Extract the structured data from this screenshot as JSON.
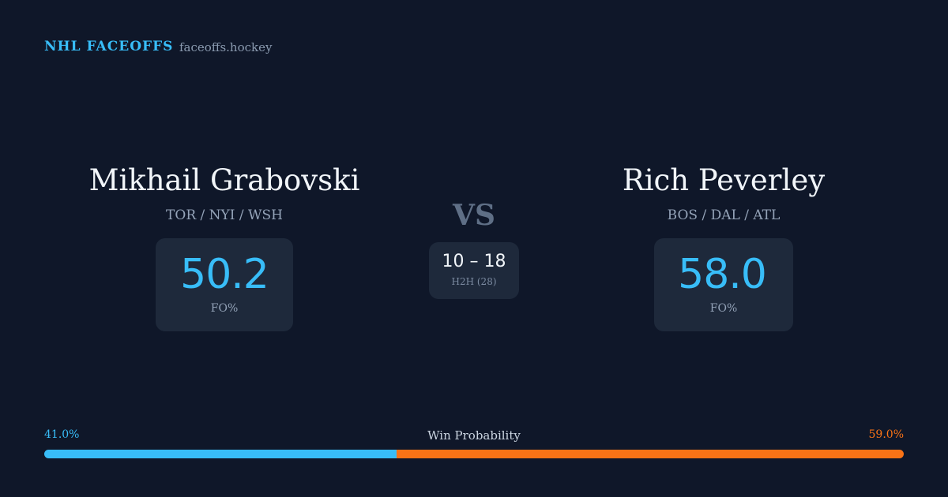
{
  "header": {
    "brand": "NHL FACEOFFS",
    "site": "faceoffs.hockey"
  },
  "players": [
    {
      "name": "Mikhail Grabovski",
      "teams": "TOR / NYI / WSH",
      "stat": "50.2",
      "stat_label": "FO%"
    },
    {
      "name": "Rich Peverley",
      "teams": "BOS / DAL / ATL",
      "stat": "58.0",
      "stat_label": "FO%"
    }
  ],
  "versus": "VS",
  "head_to_head": {
    "score": "10 – 18",
    "label": "H2H (28)"
  },
  "win_probability": {
    "title": "Win Probability",
    "left": {
      "value": 41,
      "label": "41.0%",
      "color": "#38bdf8"
    },
    "right": {
      "value": 59,
      "label": "59.0%",
      "color": "#f97316"
    }
  }
}
